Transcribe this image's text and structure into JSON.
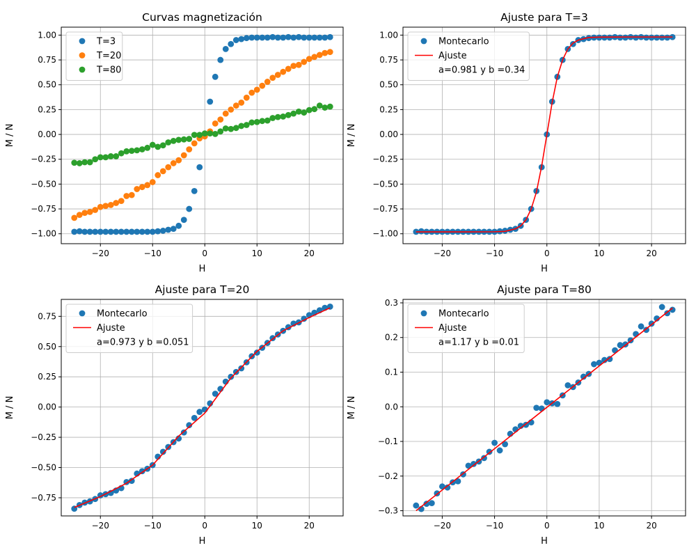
{
  "chart_data": [
    {
      "type": "scatter",
      "title": "Curvas magnetización",
      "xlabel": "H",
      "ylabel": "M / N",
      "xlim": [
        -27.5,
        26.5
      ],
      "ylim": [
        -1.1,
        1.08
      ],
      "xticks": [
        -20,
        -10,
        0,
        10,
        20
      ],
      "yticks": [
        -1.0,
        -0.75,
        -0.5,
        -0.25,
        0.0,
        0.25,
        0.5,
        0.75,
        1.0
      ],
      "ytick_labels": [
        "−1.00",
        "−0.75",
        "−0.50",
        "−0.25",
        "0.00",
        "0.25",
        "0.50",
        "0.75",
        "1.00"
      ],
      "xtick_labels": [
        "−20",
        "−10",
        "0",
        "10",
        "20"
      ],
      "grid": true,
      "legend_position": "top-left",
      "series": [
        {
          "name": "T=3",
          "kind": "points",
          "color": "#1f77b4",
          "x": [
            -25,
            -24,
            -23,
            -22,
            -21,
            -20,
            -19,
            -18,
            -17,
            -16,
            -15,
            -14,
            -13,
            -12,
            -11,
            -10,
            -9,
            -8,
            -7,
            -6,
            -5,
            -4,
            -3,
            -2,
            -1,
            0,
            1,
            2,
            3,
            4,
            5,
            6,
            7,
            8,
            9,
            10,
            11,
            12,
            13,
            14,
            15,
            16,
            17,
            18,
            19,
            20,
            21,
            22,
            23,
            24
          ],
          "y": [
            -0.98,
            -0.975,
            -0.98,
            -0.98,
            -0.98,
            -0.98,
            -0.98,
            -0.98,
            -0.98,
            -0.98,
            -0.98,
            -0.98,
            -0.98,
            -0.98,
            -0.98,
            -0.98,
            -0.975,
            -0.97,
            -0.96,
            -0.95,
            -0.92,
            -0.86,
            -0.75,
            -0.57,
            -0.33,
            0.0,
            0.33,
            0.58,
            0.75,
            0.86,
            0.91,
            0.95,
            0.96,
            0.97,
            0.975,
            0.975,
            0.975,
            0.975,
            0.98,
            0.975,
            0.975,
            0.98,
            0.975,
            0.98,
            0.975,
            0.975,
            0.975,
            0.975,
            0.975,
            0.98
          ]
        },
        {
          "name": "T=20",
          "kind": "points",
          "color": "#ff7f0e",
          "x": [
            -25,
            -24,
            -23,
            -22,
            -21,
            -20,
            -19,
            -18,
            -17,
            -16,
            -15,
            -14,
            -13,
            -12,
            -11,
            -10,
            -9,
            -8,
            -7,
            -6,
            -5,
            -4,
            -3,
            -2,
            -1,
            0,
            1,
            2,
            3,
            4,
            5,
            6,
            7,
            8,
            9,
            10,
            11,
            12,
            13,
            14,
            15,
            16,
            17,
            18,
            19,
            20,
            21,
            22,
            23,
            24
          ],
          "y": [
            -0.84,
            -0.81,
            -0.79,
            -0.78,
            -0.76,
            -0.73,
            -0.72,
            -0.71,
            -0.69,
            -0.67,
            -0.62,
            -0.61,
            -0.55,
            -0.53,
            -0.51,
            -0.48,
            -0.41,
            -0.37,
            -0.33,
            -0.29,
            -0.26,
            -0.21,
            -0.15,
            -0.09,
            -0.04,
            -0.02,
            0.03,
            0.11,
            0.15,
            0.21,
            0.25,
            0.29,
            0.32,
            0.37,
            0.42,
            0.45,
            0.49,
            0.53,
            0.57,
            0.6,
            0.63,
            0.66,
            0.69,
            0.7,
            0.73,
            0.76,
            0.78,
            0.8,
            0.82,
            0.83
          ]
        },
        {
          "name": "T=80",
          "kind": "points",
          "color": "#2ca02c",
          "x": [
            -25,
            -24,
            -23,
            -22,
            -21,
            -20,
            -19,
            -18,
            -17,
            -16,
            -15,
            -14,
            -13,
            -12,
            -11,
            -10,
            -9,
            -8,
            -7,
            -6,
            -5,
            -4,
            -3,
            -2,
            -1,
            0,
            1,
            2,
            3,
            4,
            5,
            6,
            7,
            8,
            9,
            10,
            11,
            12,
            13,
            14,
            15,
            16,
            17,
            18,
            19,
            20,
            21,
            22,
            23,
            24
          ],
          "y": [
            -0.285,
            -0.29,
            -0.28,
            -0.28,
            -0.25,
            -0.23,
            -0.23,
            -0.22,
            -0.22,
            -0.19,
            -0.17,
            -0.165,
            -0.16,
            -0.15,
            -0.135,
            -0.105,
            -0.125,
            -0.11,
            -0.08,
            -0.065,
            -0.055,
            -0.05,
            -0.045,
            -0.005,
            -0.005,
            0.01,
            0.01,
            0.005,
            0.03,
            0.06,
            0.055,
            0.065,
            0.085,
            0.095,
            0.12,
            0.125,
            0.135,
            0.14,
            0.165,
            0.175,
            0.18,
            0.195,
            0.21,
            0.23,
            0.22,
            0.245,
            0.255,
            0.29,
            0.27,
            0.28
          ]
        }
      ]
    },
    {
      "type": "scatter",
      "title": "Ajuste para T=3",
      "xlabel": "H",
      "ylabel": "M / N",
      "xlim": [
        -27.5,
        26.5
      ],
      "ylim": [
        -1.1,
        1.08
      ],
      "xticks": [
        -20,
        -10,
        0,
        10,
        20
      ],
      "yticks": [
        -1.0,
        -0.75,
        -0.5,
        -0.25,
        0.0,
        0.25,
        0.5,
        0.75,
        1.0
      ],
      "ytick_labels": [
        "−1.00",
        "−0.75",
        "−0.50",
        "−0.25",
        "0.00",
        "0.25",
        "0.50",
        "0.75",
        "1.00"
      ],
      "xtick_labels": [
        "−20",
        "−10",
        "0",
        "10",
        "20"
      ],
      "grid": true,
      "legend_position": "top-left",
      "legend_note": "a=0.981 y b =0.34",
      "series": [
        {
          "name": "Montecarlo",
          "kind": "points",
          "color": "#1f77b4",
          "x": [
            -25,
            -24,
            -23,
            -22,
            -21,
            -20,
            -19,
            -18,
            -17,
            -16,
            -15,
            -14,
            -13,
            -12,
            -11,
            -10,
            -9,
            -8,
            -7,
            -6,
            -5,
            -4,
            -3,
            -2,
            -1,
            0,
            1,
            2,
            3,
            4,
            5,
            6,
            7,
            8,
            9,
            10,
            11,
            12,
            13,
            14,
            15,
            16,
            17,
            18,
            19,
            20,
            21,
            22,
            23,
            24
          ],
          "y": [
            -0.98,
            -0.975,
            -0.98,
            -0.98,
            -0.98,
            -0.98,
            -0.98,
            -0.98,
            -0.98,
            -0.98,
            -0.98,
            -0.98,
            -0.98,
            -0.98,
            -0.98,
            -0.98,
            -0.975,
            -0.97,
            -0.96,
            -0.95,
            -0.92,
            -0.86,
            -0.75,
            -0.57,
            -0.33,
            0.0,
            0.33,
            0.58,
            0.75,
            0.86,
            0.91,
            0.95,
            0.96,
            0.97,
            0.975,
            0.975,
            0.975,
            0.975,
            0.98,
            0.975,
            0.975,
            0.98,
            0.975,
            0.98,
            0.975,
            0.975,
            0.975,
            0.975,
            0.975,
            0.98
          ]
        },
        {
          "name": "Ajuste",
          "kind": "line",
          "color": "#ff0000",
          "x": [
            -25,
            -20,
            -15,
            -10,
            -8,
            -6,
            -5,
            -4,
            -3,
            -2,
            -1,
            0,
            1,
            2,
            3,
            4,
            5,
            6,
            8,
            10,
            15,
            20,
            24
          ],
          "y": [
            -0.981,
            -0.981,
            -0.981,
            -0.98,
            -0.976,
            -0.95,
            -0.92,
            -0.86,
            -0.75,
            -0.58,
            -0.32,
            0,
            0.32,
            0.58,
            0.75,
            0.86,
            0.92,
            0.95,
            0.976,
            0.98,
            0.981,
            0.981,
            0.981
          ]
        }
      ]
    },
    {
      "type": "scatter",
      "title": "Ajuste para T=20",
      "xlabel": "H",
      "ylabel": "M / N",
      "xlim": [
        -27.5,
        26.5
      ],
      "ylim": [
        -0.9,
        0.89
      ],
      "xticks": [
        -20,
        -10,
        0,
        10,
        20
      ],
      "yticks": [
        -0.75,
        -0.5,
        -0.25,
        0.0,
        0.25,
        0.5,
        0.75
      ],
      "ytick_labels": [
        "−0.75",
        "−0.50",
        "−0.25",
        "0.00",
        "0.25",
        "0.50",
        "0.75"
      ],
      "xtick_labels": [
        "−20",
        "−10",
        "0",
        "10",
        "20"
      ],
      "grid": true,
      "legend_position": "top-left",
      "legend_note": "a=0.973 y b =0.051",
      "series": [
        {
          "name": "Montecarlo",
          "kind": "points",
          "color": "#1f77b4",
          "x": [
            -25,
            -24,
            -23,
            -22,
            -21,
            -20,
            -19,
            -18,
            -17,
            -16,
            -15,
            -14,
            -13,
            -12,
            -11,
            -10,
            -9,
            -8,
            -7,
            -6,
            -5,
            -4,
            -3,
            -2,
            -1,
            0,
            1,
            2,
            3,
            4,
            5,
            6,
            7,
            8,
            9,
            10,
            11,
            12,
            13,
            14,
            15,
            16,
            17,
            18,
            19,
            20,
            21,
            22,
            23,
            24
          ],
          "y": [
            -0.84,
            -0.81,
            -0.79,
            -0.78,
            -0.76,
            -0.73,
            -0.72,
            -0.71,
            -0.69,
            -0.67,
            -0.62,
            -0.61,
            -0.55,
            -0.53,
            -0.51,
            -0.48,
            -0.41,
            -0.37,
            -0.33,
            -0.29,
            -0.26,
            -0.21,
            -0.15,
            -0.09,
            -0.04,
            -0.02,
            0.03,
            0.11,
            0.15,
            0.21,
            0.25,
            0.29,
            0.32,
            0.37,
            0.42,
            0.45,
            0.49,
            0.53,
            0.57,
            0.6,
            0.63,
            0.66,
            0.69,
            0.7,
            0.73,
            0.76,
            0.78,
            0.8,
            0.82,
            0.83
          ]
        },
        {
          "name": "Ajuste",
          "kind": "line",
          "color": "#ff0000",
          "x": [
            -25,
            -20,
            -15,
            -10,
            -5,
            0,
            5,
            10,
            15,
            20,
            24
          ],
          "y": [
            -0.83,
            -0.74,
            -0.63,
            -0.48,
            -0.24,
            -0.05,
            0.24,
            0.46,
            0.63,
            0.74,
            0.82
          ]
        }
      ]
    },
    {
      "type": "scatter",
      "title": "Ajuste para T=80",
      "xlabel": "H",
      "ylabel": "M / N",
      "xlim": [
        -27.5,
        26.5
      ],
      "ylim": [
        -0.315,
        0.31
      ],
      "xticks": [
        -20,
        -10,
        0,
        10,
        20
      ],
      "yticks": [
        -0.3,
        -0.2,
        -0.1,
        0.0,
        0.1,
        0.2,
        0.3
      ],
      "ytick_labels": [
        "−0.3",
        "−0.2",
        "−0.1",
        "0.0",
        "0.1",
        "0.2",
        "0.3"
      ],
      "xtick_labels": [
        "−20",
        "−10",
        "0",
        "10",
        "20"
      ],
      "grid": true,
      "legend_position": "top-left",
      "legend_note": "a=1.17 y b =0.01",
      "series": [
        {
          "name": "Montecarlo",
          "kind": "points",
          "color": "#1f77b4",
          "x": [
            -25,
            -24,
            -23,
            -22,
            -21,
            -20,
            -19,
            -18,
            -17,
            -16,
            -15,
            -14,
            -13,
            -12,
            -11,
            -10,
            -9,
            -8,
            -7,
            -6,
            -5,
            -4,
            -3,
            -2,
            -1,
            0,
            1,
            2,
            3,
            4,
            5,
            6,
            7,
            8,
            9,
            10,
            11,
            12,
            13,
            14,
            15,
            16,
            17,
            18,
            19,
            20,
            21,
            22,
            23,
            24
          ],
          "y": [
            -0.285,
            -0.295,
            -0.28,
            -0.278,
            -0.25,
            -0.23,
            -0.233,
            -0.218,
            -0.215,
            -0.195,
            -0.17,
            -0.165,
            -0.158,
            -0.148,
            -0.13,
            -0.104,
            -0.126,
            -0.108,
            -0.078,
            -0.065,
            -0.055,
            -0.052,
            -0.045,
            -0.003,
            -0.005,
            0.013,
            0.01,
            0.008,
            0.033,
            0.062,
            0.057,
            0.07,
            0.087,
            0.095,
            0.123,
            0.127,
            0.135,
            0.138,
            0.163,
            0.178,
            0.18,
            0.192,
            0.21,
            0.232,
            0.222,
            0.24,
            0.255,
            0.288,
            0.27,
            0.28
          ]
        },
        {
          "name": "Ajuste",
          "kind": "line",
          "color": "#ff0000",
          "x": [
            -25,
            24
          ],
          "y": [
            -0.3,
            0.285
          ]
        }
      ]
    }
  ]
}
